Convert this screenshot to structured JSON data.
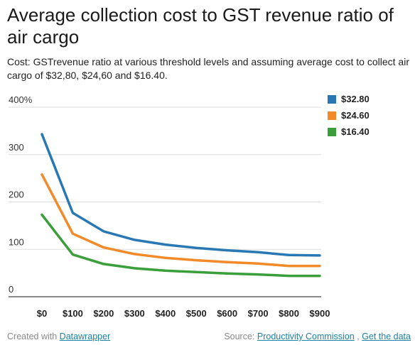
{
  "header": {
    "title": "Average collection cost to GST revenue ratio of air cargo",
    "subtitle": "Cost: GSTrevenue ratio at various threshold levels and assuming average cost to collect air cargo of $32,80, $24,60 and $16.40."
  },
  "footer": {
    "created_prefix": "Created with",
    "created_link": "Datawrapper",
    "source_prefix": "Source:",
    "source_link": "Productivity Commission",
    "source_sep": ",",
    "data_link": "Get the data"
  },
  "colors": {
    "s1": "#2a78b3",
    "s2": "#f28a2a",
    "s3": "#3a9e3a",
    "grid": "#dddddd",
    "axis": "#444444"
  },
  "chart_data": {
    "type": "line",
    "title": "Average collection cost to GST revenue ratio of air cargo",
    "subtitle": "Cost: GSTrevenue ratio at various threshold levels and assuming average cost to collect air cargo of $32,80, $24,60 and $16.40.",
    "xlabel": "",
    "ylabel": "",
    "categories": [
      "$0",
      "$100",
      "$200",
      "$300",
      "$400",
      "$500",
      "$600",
      "$700",
      "$800",
      "$900"
    ],
    "y_ticks": [
      {
        "value": 0,
        "label": "0"
      },
      {
        "value": 100,
        "label": "100"
      },
      {
        "value": 200,
        "label": "200"
      },
      {
        "value": 300,
        "label": "300"
      },
      {
        "value": 400,
        "label": "400%"
      }
    ],
    "ylim": [
      0,
      400
    ],
    "grid": true,
    "legend_position": "top-right",
    "series": [
      {
        "name": "$32.80",
        "color": "#2a78b3",
        "values": [
          343,
          177,
          138,
          120,
          110,
          103,
          98,
          94,
          88,
          87
        ]
      },
      {
        "name": "$24.60",
        "color": "#f28a2a",
        "values": [
          258,
          133,
          104,
          90,
          82,
          77,
          73,
          70,
          65,
          65
        ]
      },
      {
        "name": "$16.40",
        "color": "#3a9e3a",
        "values": [
          173,
          89,
          69,
          60,
          55,
          52,
          49,
          47,
          44,
          44
        ]
      }
    ]
  }
}
